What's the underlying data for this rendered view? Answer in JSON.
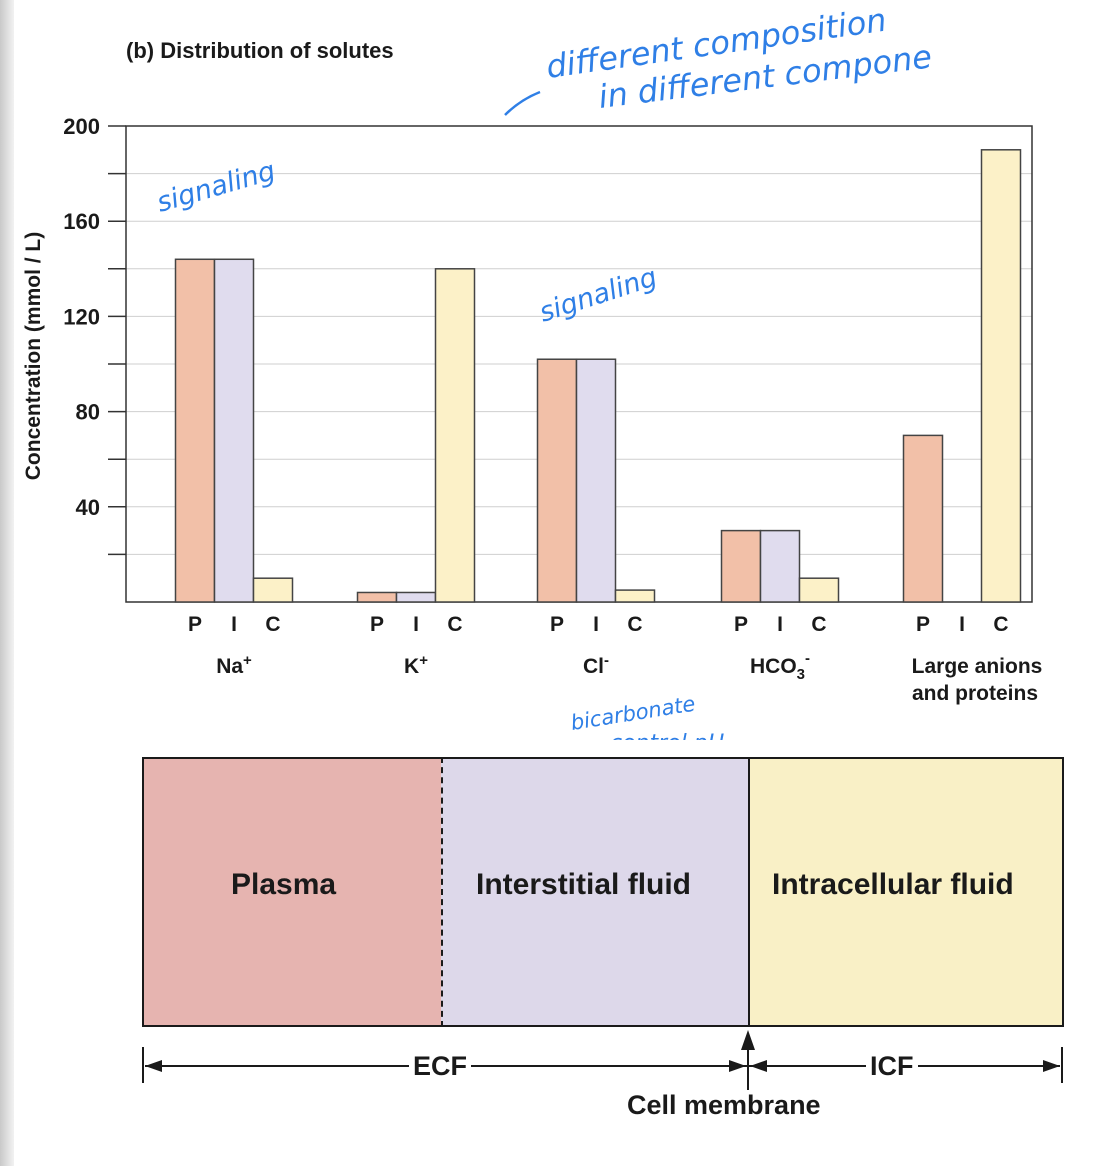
{
  "panel": {
    "letter": "(b)",
    "title": "Distribution of solutes"
  },
  "chart_data": {
    "type": "bar",
    "ylabel": "Concentration (mmol / L)",
    "ylim": [
      0,
      200
    ],
    "yticks": [
      40,
      80,
      120,
      160,
      200
    ],
    "grid": true,
    "categories": [
      "Na+",
      "K+",
      "Cl-",
      "HCO3-",
      "Large anions and proteins"
    ],
    "series": [
      {
        "name": "P",
        "color": "#f2c0a8",
        "values": [
          144,
          4,
          102,
          30,
          70
        ]
      },
      {
        "name": "I",
        "color": "#e0dcee",
        "values": [
          144,
          4,
          102,
          30,
          0
        ]
      },
      {
        "name": "C",
        "color": "#fcf1c8",
        "values": [
          10,
          140,
          5,
          10,
          190
        ]
      }
    ]
  },
  "compartments": {
    "plasma": {
      "label": "Plasma",
      "color": "#e6b4b0"
    },
    "interstitial": {
      "label": "Interstitial fluid",
      "color": "#ddd8ea"
    },
    "intracellular": {
      "label": "Intracellular fluid",
      "color": "#f9f0c6"
    }
  },
  "brackets": {
    "ecf": "ECF",
    "icf": "ICF",
    "membrane": "Cell membrane"
  },
  "handwritten_notes": {
    "top_line1": "different composition",
    "top_line2": "in different compone",
    "na": "signaling",
    "cl": "signaling",
    "hco3_line1": "bicarbonate",
    "hco3_line2": "control pH"
  }
}
